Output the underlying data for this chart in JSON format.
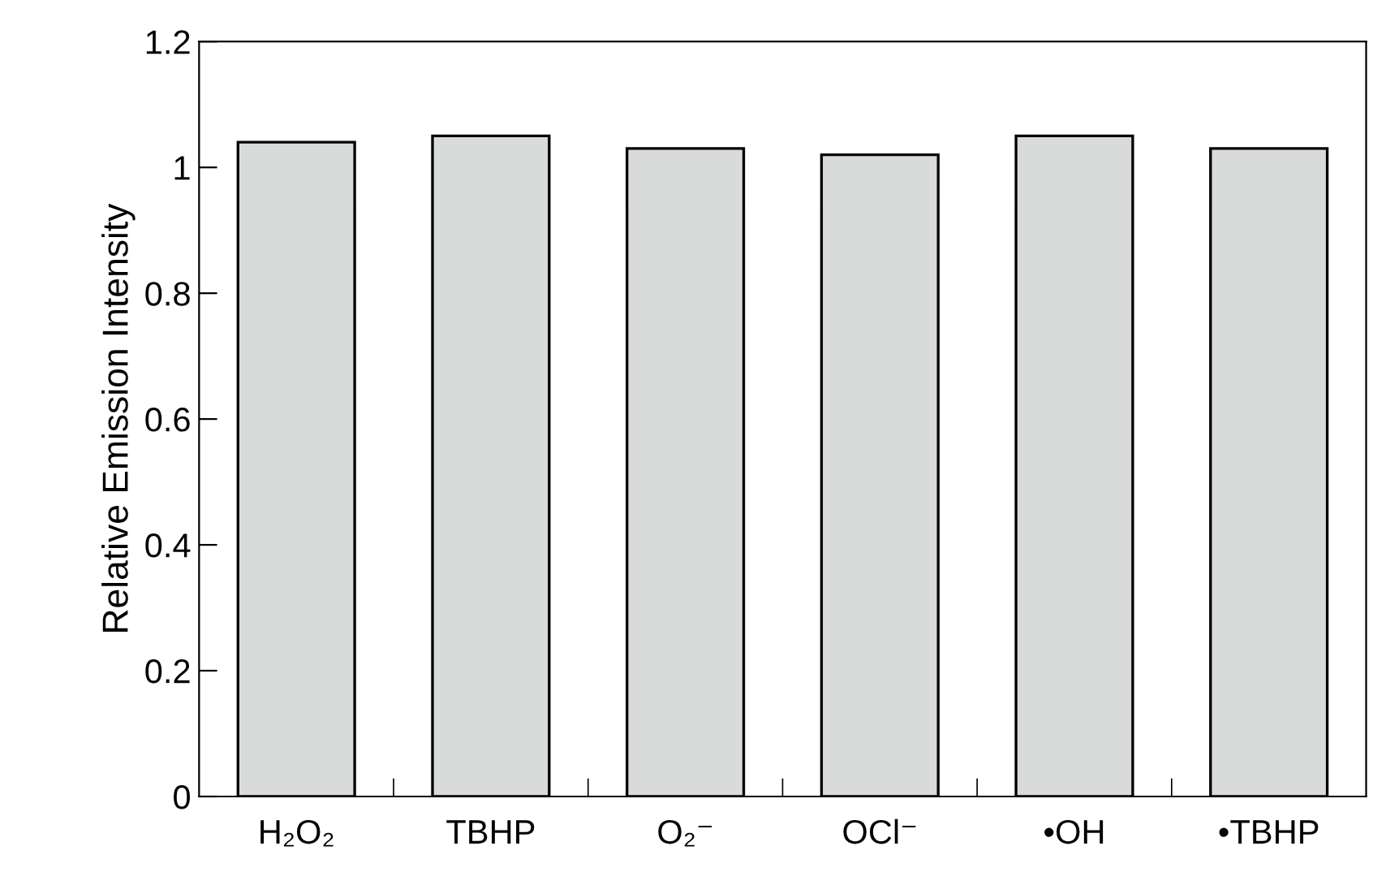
{
  "chart_data": {
    "type": "bar",
    "ylabel": "Relative Emission Intensity",
    "categories": [
      "H₂O₂",
      "TBHP",
      "O₂⁻",
      "OCl⁻",
      "•OH",
      "•TBHP"
    ],
    "values": [
      1.04,
      1.05,
      1.03,
      1.02,
      1.05,
      1.03
    ],
    "color": "#d9dbda",
    "ylim": [
      0,
      1.2
    ],
    "yticks": [
      0,
      0.2,
      0.4,
      0.6,
      0.8,
      1,
      1.2
    ],
    "grid": false
  }
}
